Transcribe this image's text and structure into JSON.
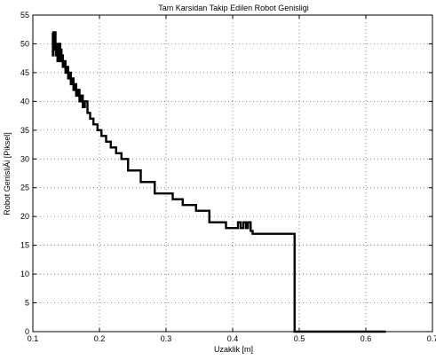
{
  "chart_data": {
    "type": "line",
    "title": "Tam Karsidan Takip Edilen Robot Genisligi",
    "xlabel": "Uzaklik [m]",
    "ylabel": "Robot GenisliÄi [Piksel]",
    "xlim": [
      0.1,
      0.7
    ],
    "ylim": [
      0,
      55
    ],
    "xticks": [
      0.1,
      0.2,
      0.3,
      0.4,
      0.5,
      0.6,
      0.7
    ],
    "xtick_labels": [
      "0.1",
      "0.2",
      "0.3",
      "0.4",
      "0.5",
      "0.6",
      "0.7"
    ],
    "yticks": [
      0,
      5,
      10,
      15,
      20,
      25,
      30,
      35,
      40,
      45,
      50,
      55
    ],
    "ytick_labels": [
      "0",
      "5",
      "10",
      "15",
      "20",
      "25",
      "30",
      "35",
      "40",
      "45",
      "50",
      "55"
    ],
    "grid": true,
    "line_color": "#000000",
    "series": [
      {
        "x": [
          0.13,
          0.13,
          0.131,
          0.131,
          0.132,
          0.132,
          0.133,
          0.133,
          0.134,
          0.134,
          0.135,
          0.135,
          0.136,
          0.136,
          0.137,
          0.137,
          0.138,
          0.138,
          0.139,
          0.139,
          0.14,
          0.14,
          0.141,
          0.141,
          0.142,
          0.142,
          0.143,
          0.143,
          0.144,
          0.144,
          0.145,
          0.145,
          0.147,
          0.147,
          0.149,
          0.149,
          0.151,
          0.151,
          0.153,
          0.153,
          0.155,
          0.155,
          0.157,
          0.157,
          0.159,
          0.159,
          0.161,
          0.161,
          0.163,
          0.163,
          0.165,
          0.165,
          0.167,
          0.167,
          0.17,
          0.17,
          0.172,
          0.172,
          0.175,
          0.175,
          0.178,
          0.178,
          0.182,
          0.182,
          0.186,
          0.186,
          0.191,
          0.191,
          0.197,
          0.197,
          0.203,
          0.203,
          0.21,
          0.21,
          0.217,
          0.217,
          0.225,
          0.225,
          0.233,
          0.233,
          0.243,
          0.243,
          0.262,
          0.262,
          0.283,
          0.283,
          0.31,
          0.31,
          0.325,
          0.325,
          0.345,
          0.345,
          0.365,
          0.365,
          0.39,
          0.39,
          0.408,
          0.408,
          0.412,
          0.412,
          0.416,
          0.416,
          0.42,
          0.42,
          0.423,
          0.423,
          0.427,
          0.427,
          0.43,
          0.43,
          0.493,
          0.493,
          0.63
        ],
        "y": [
          52,
          48,
          48,
          52,
          52,
          49,
          49,
          52,
          52,
          50,
          50,
          48,
          48,
          50,
          50,
          47,
          47,
          50,
          50,
          48,
          48,
          50,
          50,
          47,
          47,
          49,
          49,
          47,
          47,
          48,
          48,
          46,
          46,
          47,
          47,
          45,
          45,
          46,
          46,
          44,
          44,
          45,
          45,
          43,
          43,
          44,
          44,
          42,
          42,
          43,
          43,
          41,
          41,
          42,
          42,
          40,
          40,
          41,
          41,
          39,
          39,
          40,
          40,
          38,
          38,
          37,
          37,
          36,
          36,
          35,
          35,
          34,
          34,
          33,
          33,
          32,
          32,
          31,
          31,
          30,
          30,
          28,
          28,
          26,
          26,
          24,
          24,
          23,
          23,
          22,
          22,
          21,
          21,
          19,
          19,
          18,
          18,
          19,
          19,
          18,
          18,
          19,
          19,
          18,
          18,
          19,
          19,
          17.5,
          17.5,
          17,
          17,
          0,
          0
        ]
      }
    ]
  }
}
